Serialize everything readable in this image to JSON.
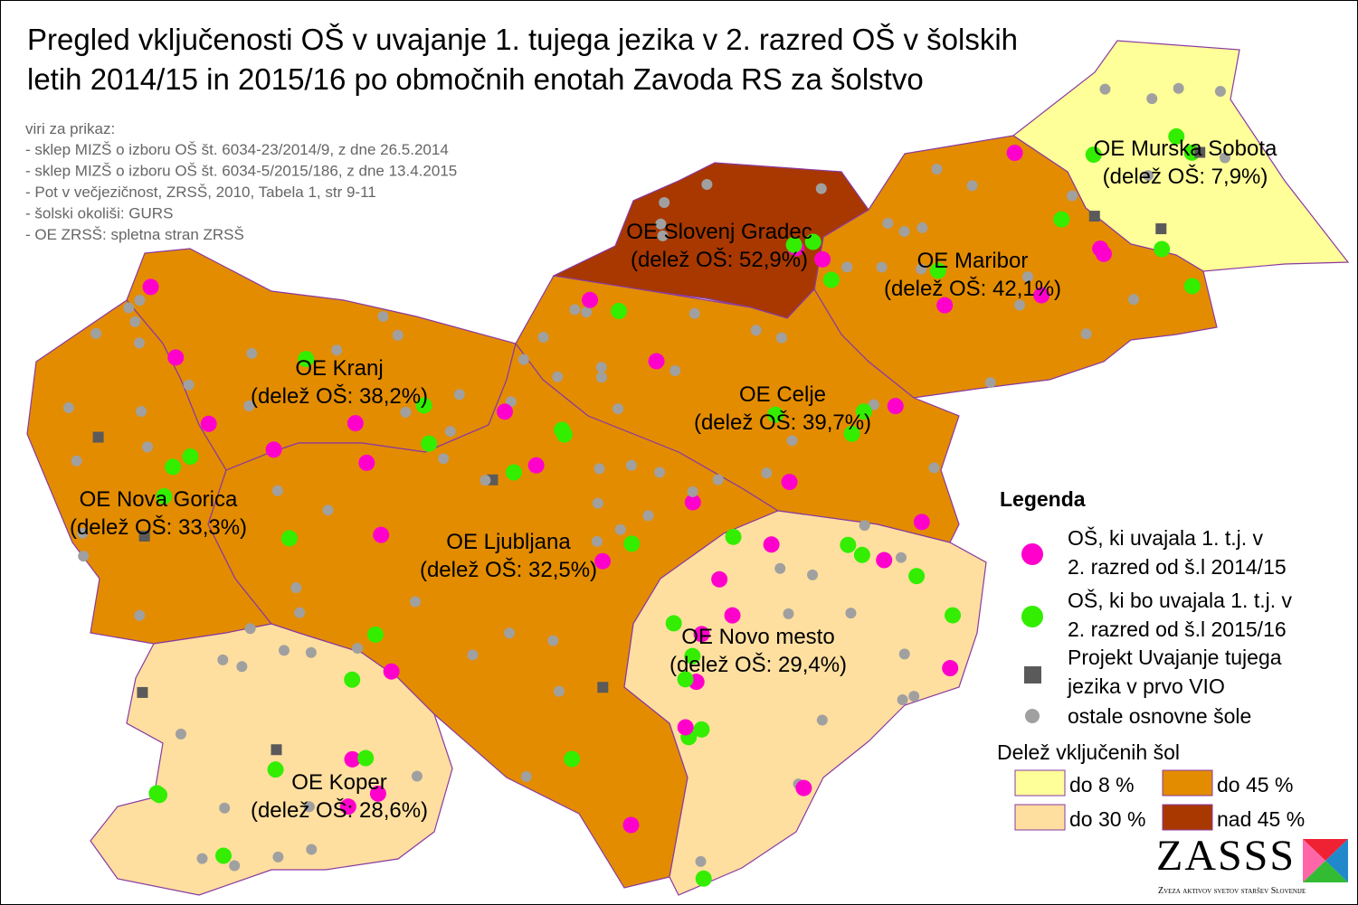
{
  "title": [
    "Pregled vključenosti OŠ v uvajanje 1. tujega jezika v 2. razred OŠ v šolskih",
    "letih 2014/15 in 2015/16 po območnih enotah Zavoda RS za šolstvo"
  ],
  "sources": {
    "heading": "viri za prikaz:",
    "items": [
      "- sklep MIZŠ o izboru OŠ št. 6034-23/2014/9, z dne 26.5.2014",
      "- sklep MIZŠ o izboru OŠ št. 6034-5/2015/186, z dne 13.4.2015",
      "- Pot v večjezičnost, ZRSŠ, 2010, Tabela 1, str 9-11",
      "- šolski okoliši: GURS",
      "- OE ZRSŠ: spletna stran ZRSŠ"
    ]
  },
  "regions": [
    {
      "name": "OE Murska Sobota",
      "share": "(delež OŠ: 7,9%)",
      "color": "#ffff99"
    },
    {
      "name": "OE Maribor",
      "share": "(delež OŠ: 42,1%)",
      "color": "#e38c00"
    },
    {
      "name": "OE Slovenj Gradec",
      "share": "(delež OŠ: 52,9%)",
      "color": "#a83800"
    },
    {
      "name": "OE Celje",
      "share": "(delež OŠ: 39,7%)",
      "color": "#e38c00"
    },
    {
      "name": "OE Kranj",
      "share": "(delež OŠ: 38,2%)",
      "color": "#e38c00"
    },
    {
      "name": "OE Nova Gorica",
      "share": "(delež OŠ: 33,3%)",
      "color": "#e38c00"
    },
    {
      "name": "OE Ljubljana",
      "share": "(delež OŠ: 32,5%)",
      "color": "#e38c00"
    },
    {
      "name": "OE Novo mesto",
      "share": "(delež OŠ: 29,4%)",
      "color": "#ffdf9f"
    },
    {
      "name": "OE Koper",
      "share": "(delež OŠ: 28,6%)",
      "color": "#ffdf9f"
    }
  ],
  "legend": {
    "title": "Legenda",
    "symbols": [
      {
        "lines": [
          "OŠ, ki uvajala 1. t.j. v",
          "2. razred od š.l 2014/15"
        ],
        "color": "#ff00cc"
      },
      {
        "lines": [
          "OŠ, ki bo uvajala 1. t.j. v",
          "2. razred od š.l 2015/16"
        ],
        "color": "#33ee00"
      },
      {
        "lines": [
          "Projekt Uvajanje tujega",
          "jezika v prvo VIO"
        ],
        "color": "#5a5a5a"
      },
      {
        "lines": [
          "ostale osnovne šole"
        ],
        "color": "#a0a0a0"
      }
    ],
    "share_title": "Delež vključenih šol",
    "classes": [
      {
        "label": "do 8 %",
        "color": "#ffff99"
      },
      {
        "label": "do 45 %",
        "color": "#e38c00"
      },
      {
        "label": "do 30 %",
        "color": "#ffdf9f"
      },
      {
        "label": "nad 45 %",
        "color": "#a83800"
      }
    ]
  },
  "logo": {
    "name": "ZASSS",
    "tagline": "Zveza aktivov svetov staršev Slovenije"
  }
}
